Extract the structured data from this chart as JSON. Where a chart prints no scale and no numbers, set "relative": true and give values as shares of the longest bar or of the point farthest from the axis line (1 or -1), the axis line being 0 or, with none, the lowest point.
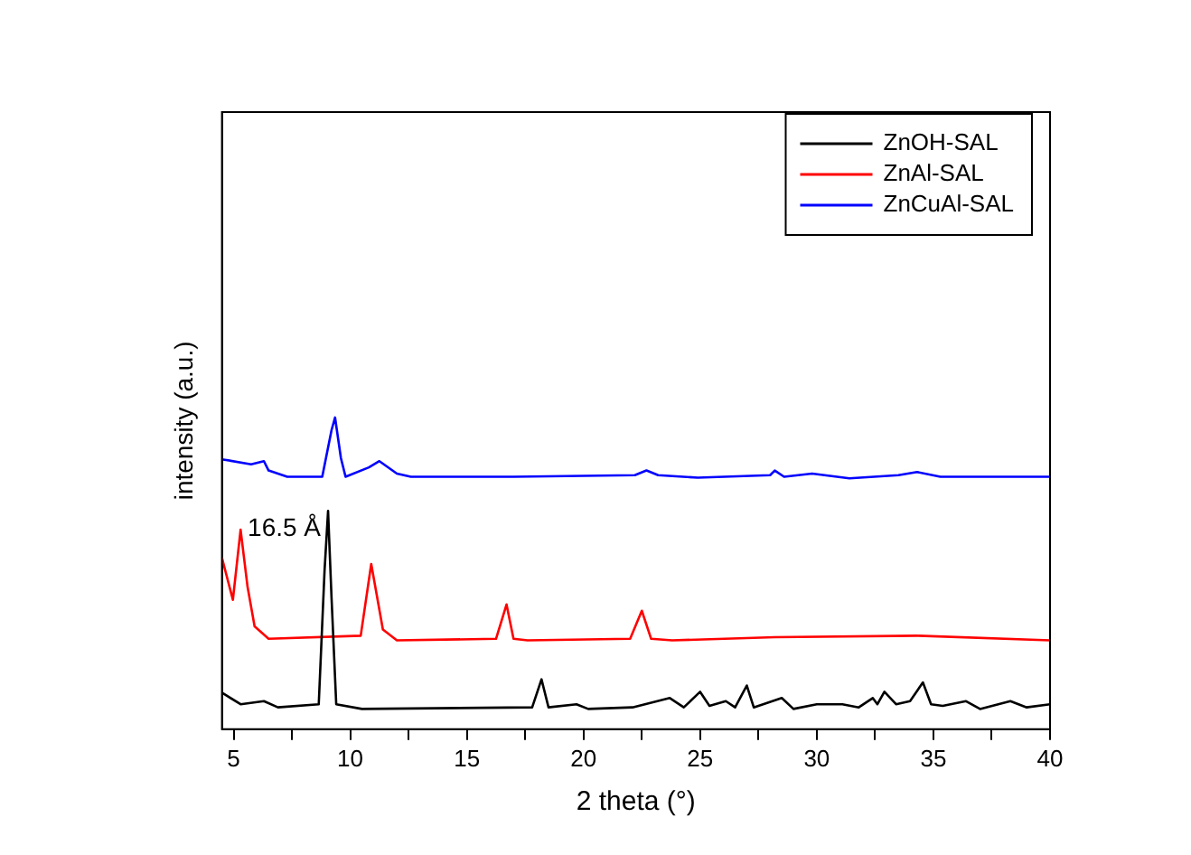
{
  "chart_data": {
    "type": "line",
    "relative": true,
    "xlabel": "2 theta (°)",
    "ylabel": "intensity (a.u.)",
    "xlim": [
      4.5,
      40
    ],
    "xticks": [
      5,
      {
        "value": 7.5,
        "label": null
      },
      10,
      {
        "value": 12.5,
        "label": null
      },
      15,
      {
        "value": 17.5,
        "label": null
      },
      20,
      {
        "value": 22.5,
        "label": null
      },
      25,
      {
        "value": 27.5,
        "label": null
      },
      30,
      {
        "value": 32.5,
        "label": null
      },
      35,
      {
        "value": 37.5,
        "label": null
      },
      40
    ],
    "legend": "top right",
    "grid": false,
    "marker": "none",
    "tick_labels": "x",
    "annotations": [
      {
        "text": "16.5 Å",
        "x": 9.05,
        "y": 0.7
      }
    ],
    "series": [
      {
        "name": "ZnOH-SAL",
        "color": "#000000",
        "x": [
          4.5,
          5.3,
          6.3,
          6.9,
          8.65,
          8.9,
          9.05,
          9.2,
          9.4,
          10.5,
          17.8,
          18.2,
          18.5,
          19.7,
          20.2,
          22.1,
          23.7,
          24.3,
          25.0,
          25.4,
          26.1,
          26.5,
          27.0,
          27.3,
          28.5,
          29.0,
          30.0,
          31.1,
          31.8,
          32.4,
          32.6,
          32.9,
          33.4,
          34.0,
          34.55,
          34.9,
          35.4,
          36.4,
          37.0,
          38.3,
          39.0,
          40
        ],
        "values": [
          0.117,
          0.08,
          0.09,
          0.07,
          0.08,
          0.51,
          0.7,
          0.42,
          0.08,
          0.065,
          0.07,
          0.16,
          0.07,
          0.08,
          0.065,
          0.07,
          0.1,
          0.07,
          0.12,
          0.075,
          0.09,
          0.07,
          0.14,
          0.07,
          0.1,
          0.065,
          0.08,
          0.08,
          0.07,
          0.1,
          0.08,
          0.12,
          0.08,
          0.09,
          0.15,
          0.08,
          0.075,
          0.09,
          0.065,
          0.09,
          0.07,
          0.08
        ]
      },
      {
        "name": "ZnAl-SAL",
        "color": "#ff0000",
        "x": [
          4.5,
          4.97,
          5.3,
          5.6,
          5.9,
          6.5,
          10.45,
          10.9,
          11.4,
          12.0,
          16.25,
          16.7,
          17.0,
          17.6,
          22.0,
          22.5,
          22.9,
          23.8,
          28.2,
          34.3,
          40
        ],
        "values": [
          0.55,
          0.415,
          0.64,
          0.456,
          0.33,
          0.29,
          0.3,
          0.53,
          0.32,
          0.285,
          0.29,
          0.4,
          0.29,
          0.285,
          0.29,
          0.38,
          0.29,
          0.285,
          0.295,
          0.3,
          0.285
        ]
      },
      {
        "name": "ZnCuAl-SAL",
        "color": "#0000ff",
        "x": [
          4.5,
          5.75,
          6.3,
          6.5,
          7.3,
          8.8,
          9.2,
          9.35,
          9.6,
          9.8,
          10.8,
          11.25,
          12.0,
          12.6,
          17.0,
          22.2,
          22.7,
          23.2,
          24.9,
          28.0,
          28.2,
          28.6,
          29.8,
          31.4,
          33.5,
          34.3,
          35.3,
          40
        ],
        "values": [
          0.866,
          0.85,
          0.86,
          0.83,
          0.81,
          0.81,
          0.96,
          1.0,
          0.87,
          0.81,
          0.84,
          0.86,
          0.82,
          0.81,
          0.81,
          0.815,
          0.83,
          0.815,
          0.807,
          0.815,
          0.83,
          0.81,
          0.82,
          0.805,
          0.815,
          0.825,
          0.81,
          0.81
        ]
      }
    ]
  }
}
